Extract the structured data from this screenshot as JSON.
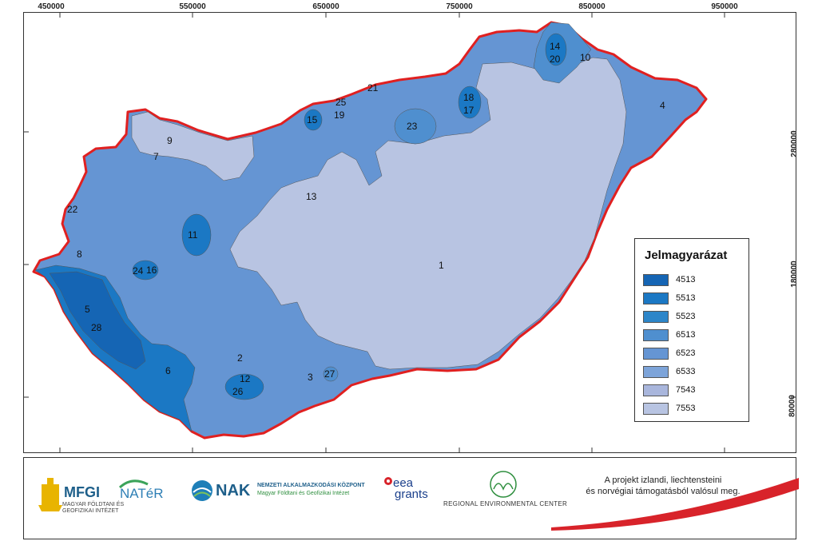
{
  "axes": {
    "top": [
      "450000",
      "550000",
      "650000",
      "750000",
      "850000",
      "950000"
    ],
    "right": [
      "280000",
      "180000",
      "80000"
    ]
  },
  "legend": {
    "title": "Jelmagyarázat",
    "items": [
      {
        "code": "4513",
        "color": "#1565b4"
      },
      {
        "code": "5513",
        "color": "#1b78c4"
      },
      {
        "code": "5523",
        "color": "#2d86c9"
      },
      {
        "code": "6513",
        "color": "#4f8fcf"
      },
      {
        "code": "6523",
        "color": "#6595d3"
      },
      {
        "code": "6533",
        "color": "#7da4d9"
      },
      {
        "code": "7543",
        "color": "#a9b6dc"
      },
      {
        "code": "7553",
        "color": "#b8c4e2"
      }
    ]
  },
  "regions": [
    "1",
    "2",
    "3",
    "4",
    "5",
    "6",
    "7",
    "8",
    "9",
    "10",
    "11",
    "12",
    "13",
    "14",
    "15",
    "16",
    "17",
    "18",
    "19",
    "20",
    "21",
    "22",
    "23",
    "24",
    "25",
    "26",
    "27",
    "28"
  ],
  "footer": {
    "mfgi": "MFGI",
    "mfgi_sub": "MAGYAR FÖLDTANI ÉS GEOFIZIKAI INTÉZET",
    "nater": "NATéR",
    "nak": "NAK",
    "nak_line1": "NEMZETI ALKALMAZKODÁSI KÖZPONT",
    "nak_line2": "Magyar Földtani és Geofizikai Intézet",
    "eea1": "eea",
    "eea2": "grants",
    "rec": "REGIONAL ENVIRONMENTAL CENTER",
    "funding_line1": "A projekt izlandi, liechtensteini",
    "funding_line2": "és norvégiai támogatásból valósul meg."
  }
}
